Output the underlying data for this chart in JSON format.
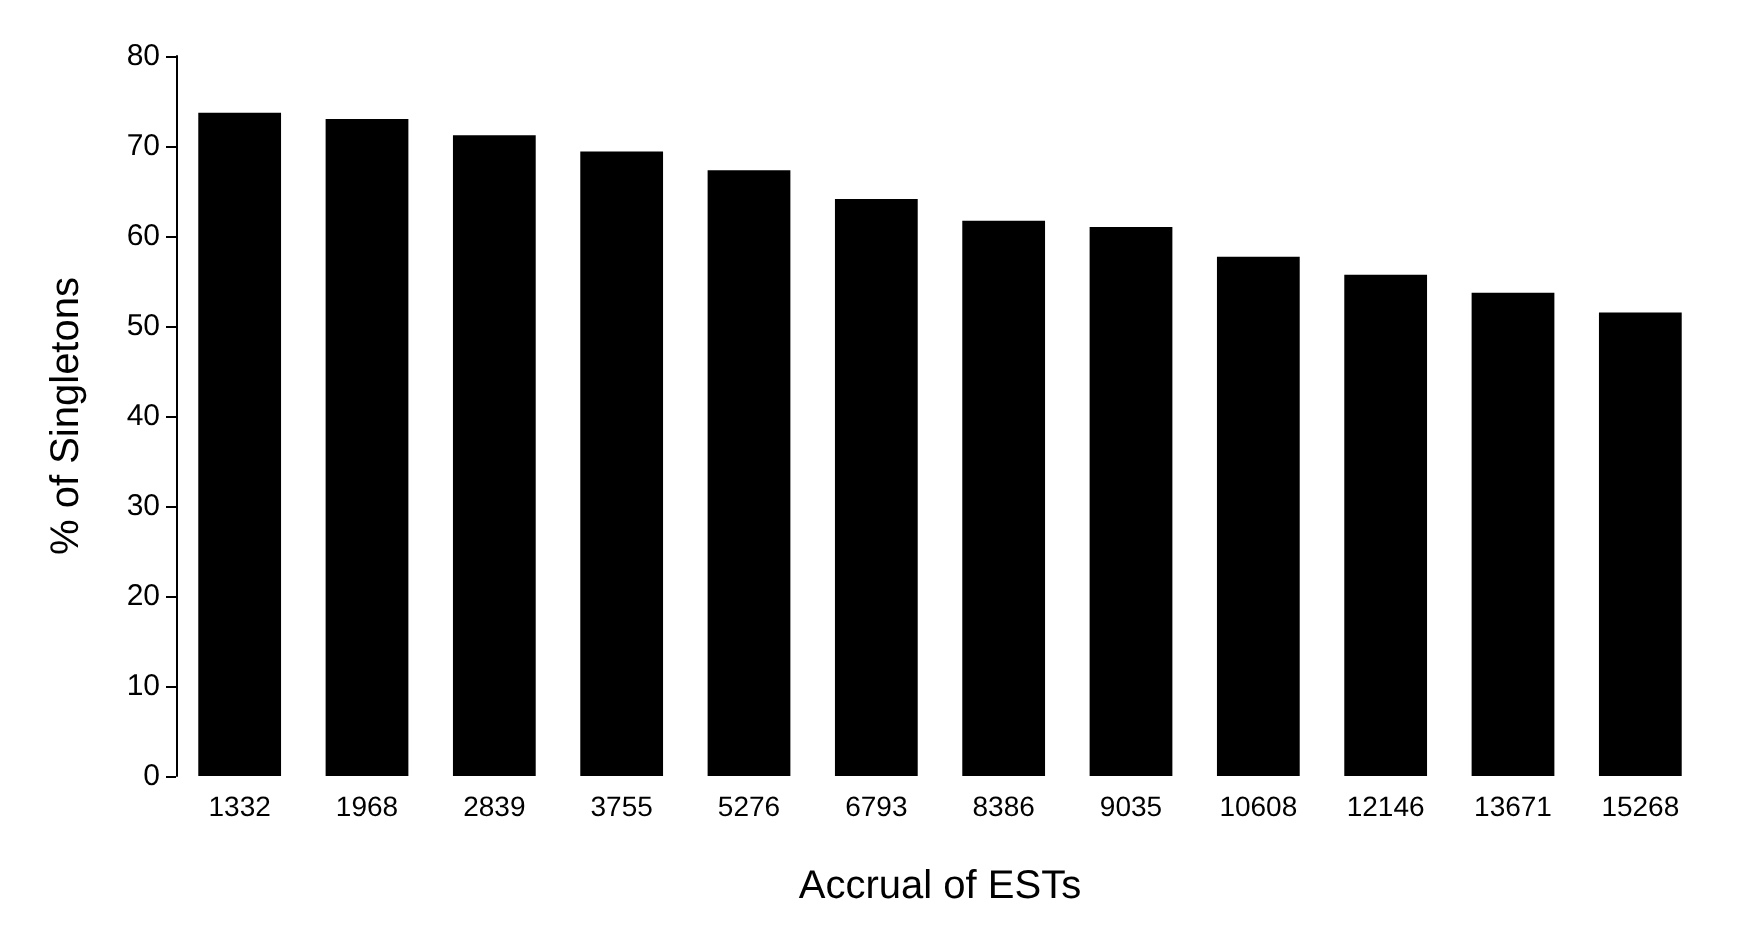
{
  "chart_data": {
    "type": "bar",
    "xlabel": "Accrual of ESTs",
    "ylabel": "% of Singletons",
    "categories": [
      "1332",
      "1968",
      "2839",
      "3755",
      "5276",
      "6793",
      "8386",
      "9035",
      "10608",
      "12146",
      "13671",
      "15268"
    ],
    "values": [
      73.7,
      73.0,
      71.2,
      69.4,
      67.3,
      64.1,
      61.7,
      61.0,
      57.7,
      55.7,
      53.7,
      51.5
    ],
    "color": "#000000",
    "ylim": [
      0,
      80
    ],
    "yticks": [
      0,
      10,
      20,
      30,
      40,
      50,
      60,
      70,
      80
    ],
    "grid": false
  }
}
